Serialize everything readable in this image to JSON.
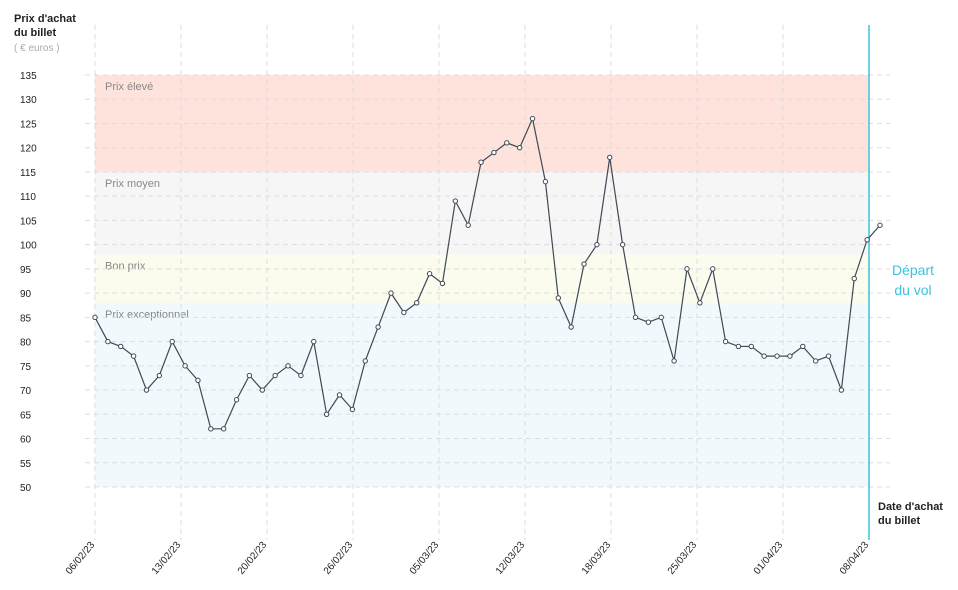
{
  "chart_data": {
    "type": "line",
    "y_title": [
      "Prix d'achat",
      "du billet"
    ],
    "y_unit": "( € euros )",
    "x_title": [
      "Date d'achat",
      "du billet"
    ],
    "xticks": [
      "06/02/23",
      "13/02/23",
      "20/02/23",
      "26/02/23",
      "05/03/23",
      "12/03/23",
      "18/03/23",
      "25/03/23",
      "01/04/23",
      "08/04/23"
    ],
    "ylim": [
      50,
      135
    ],
    "yticks": [
      50,
      55,
      60,
      65,
      70,
      75,
      80,
      85,
      90,
      95,
      100,
      105,
      110,
      115,
      120,
      125,
      130,
      135
    ],
    "bands": [
      {
        "label": "Prix élevé",
        "range": [
          115,
          135
        ],
        "color": "#fde3dc"
      },
      {
        "label": "Prix moyen",
        "range": [
          98,
          115
        ],
        "color": "#f6f6f6"
      },
      {
        "label": "Bon prix",
        "range": [
          88,
          98
        ],
        "color": "#fbfbee"
      },
      {
        "label": "Prix exceptionnel",
        "range": [
          50,
          88
        ],
        "color": "#f1f9fc"
      }
    ],
    "departure": [
      "Départ",
      "du vol"
    ],
    "departure_color": "#3cc3dc",
    "color": "#3e4a57",
    "values": [
      85,
      80,
      79,
      77,
      70,
      73,
      80,
      75,
      72,
      62,
      62,
      68,
      73,
      70,
      73,
      75,
      73,
      80,
      65,
      69,
      66,
      76,
      83,
      90,
      86,
      88,
      94,
      92,
      109,
      104,
      117,
      119,
      121,
      120,
      126,
      113,
      89,
      83,
      96,
      100,
      118,
      100,
      85,
      84,
      85,
      76,
      95,
      88,
      95,
      80,
      79,
      79,
      77,
      77,
      77,
      79,
      76,
      77,
      70,
      93,
      101,
      104
    ]
  }
}
